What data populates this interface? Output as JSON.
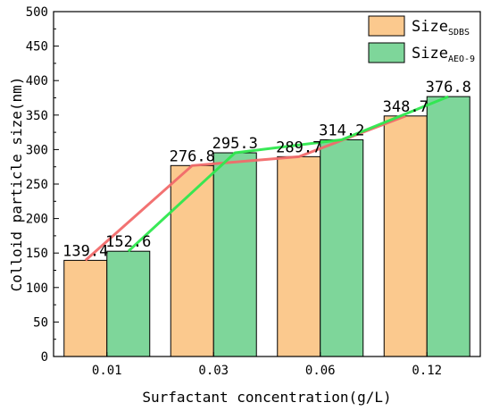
{
  "chart_data": {
    "type": "bar",
    "xlabel": "Surfactant concentration(g/L)",
    "ylabel": "Colloid particle size(nm)",
    "categories": [
      "0.01",
      "0.03",
      "0.06",
      "0.12"
    ],
    "ylim": [
      0,
      500
    ],
    "yticks": [
      "0",
      "50",
      "100",
      "150",
      "200",
      "250",
      "300",
      "350",
      "400",
      "450",
      "500"
    ],
    "grid": false,
    "legend_position": "top-right",
    "series": [
      {
        "name": "Size",
        "name_sub": "SDBS",
        "color": "#FBC98E",
        "line_color": "#F16A6A",
        "values": [
          139.4,
          276.8,
          289.7,
          348.7
        ],
        "labels": [
          "139.4",
          "276.8",
          "289.7",
          "348.7"
        ]
      },
      {
        "name": "Size",
        "name_sub": "AEO-9",
        "color": "#7ED69A",
        "line_color": "#2EE84E",
        "values": [
          152.6,
          295.3,
          314.2,
          376.8
        ],
        "labels": [
          "152.6",
          "295.3",
          "314.2",
          "376.8"
        ]
      }
    ]
  }
}
